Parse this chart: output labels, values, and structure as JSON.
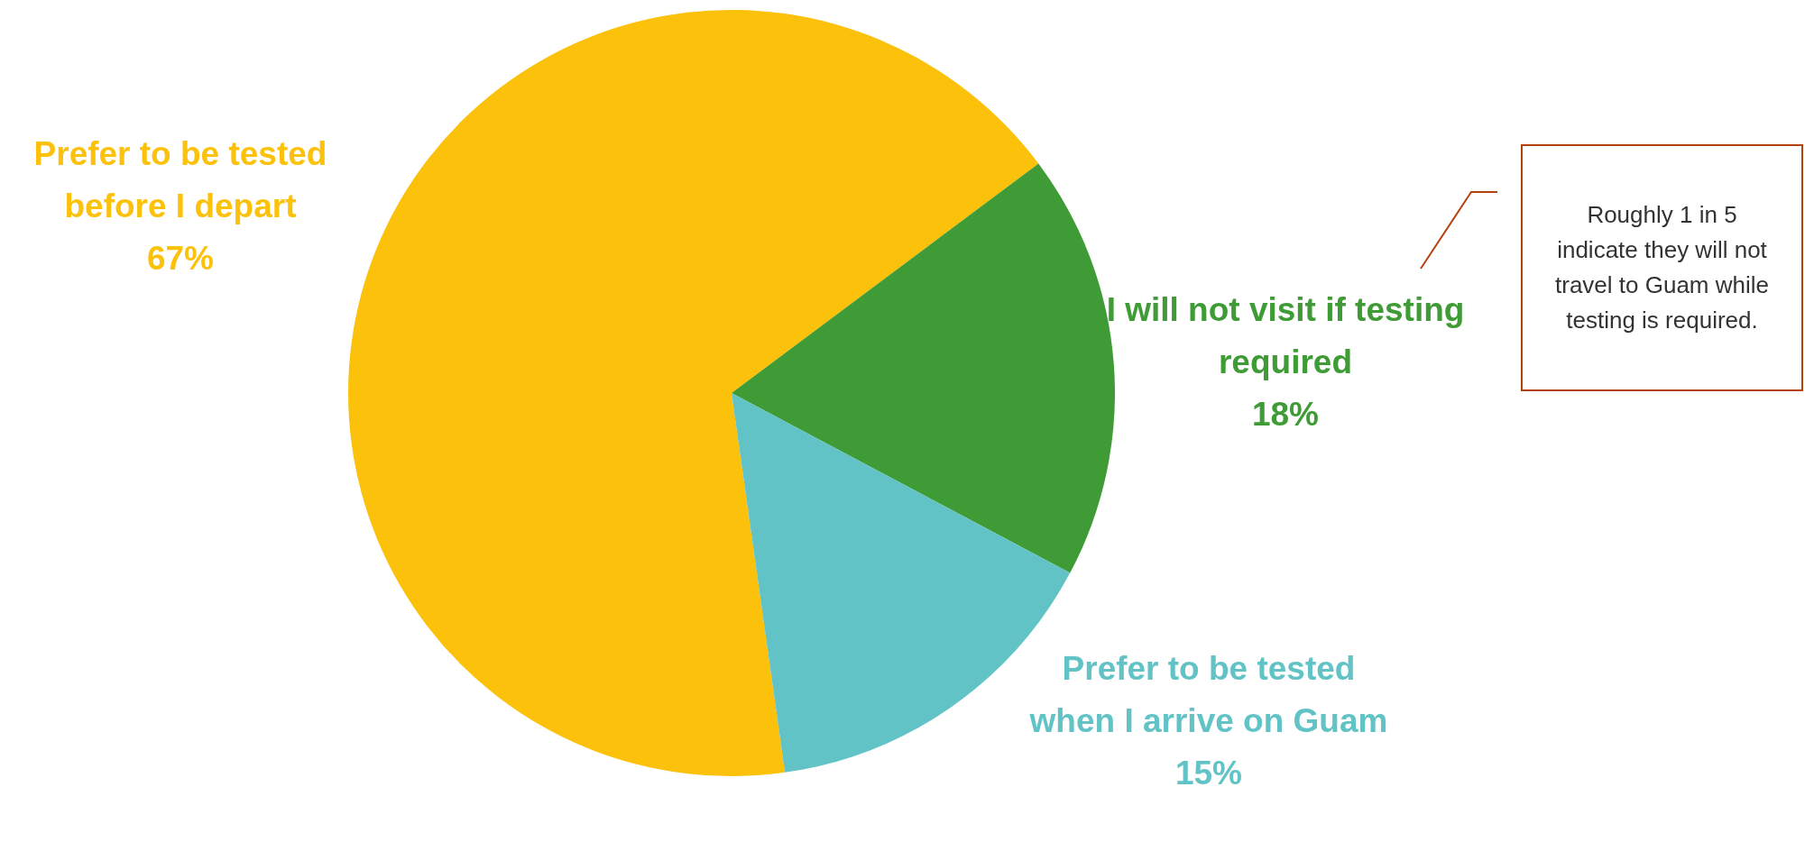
{
  "chart_data": {
    "type": "pie",
    "categories": [
      "Prefer to be tested before I depart",
      "I will not visit if testing required",
      "Prefer to be tested when I arrive on Guam"
    ],
    "values": [
      67,
      18,
      15
    ],
    "value_labels": [
      "67%",
      "18%",
      "15%"
    ],
    "colors": [
      "#fcc10b",
      "#3e9b35",
      "#62c3c6"
    ],
    "legend": false,
    "annotations": [
      "Roughly 1 in 5 indicate they will not travel to Guam while testing is required."
    ]
  }
}
